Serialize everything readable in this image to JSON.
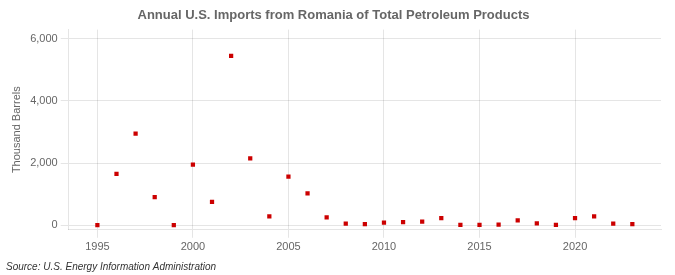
{
  "chart_data": {
    "type": "scatter",
    "title": "Annual U.S. Imports from Romania of Total Petroleum Products",
    "ylabel": "Thousand Barrels",
    "annotations": [
      "Source: U.S. Energy Information Administration"
    ],
    "color": "#cc0000",
    "marker": "square",
    "grid": true,
    "x": [
      1995,
      1996,
      1997,
      1998,
      1999,
      2000,
      2001,
      2002,
      2003,
      2004,
      2005,
      2006,
      2007,
      2008,
      2009,
      2010,
      2011,
      2012,
      2013,
      2014,
      2015,
      2016,
      2017,
      2018,
      2019,
      2020,
      2021,
      2022,
      2023
    ],
    "values": [
      0,
      1650,
      2950,
      900,
      0,
      1950,
      750,
      5450,
      2150,
      280,
      1560,
      1020,
      250,
      50,
      30,
      80,
      100,
      110,
      230,
      10,
      10,
      20,
      150,
      60,
      10,
      230,
      280,
      50,
      30
    ],
    "xlim": [
      1993.5,
      2024.5
    ],
    "xticks": [
      1995,
      2000,
      2005,
      2010,
      2015,
      2020
    ],
    "ylim": [
      -150,
      6300
    ],
    "yticks": [
      0,
      {
        "value": 2000,
        "label": "2,000"
      },
      {
        "value": 4000,
        "label": "4,000"
      },
      {
        "value": 6000,
        "label": "6,000"
      }
    ]
  }
}
